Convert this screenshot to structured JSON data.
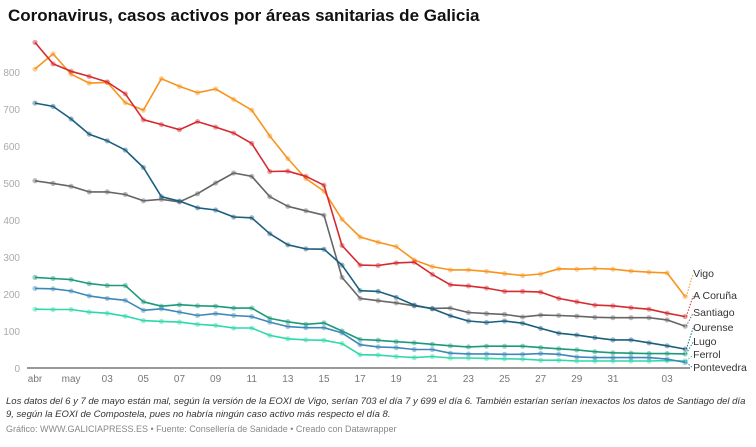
{
  "title": "Coronavirus, casos activos por áreas sanitarias de Galicia",
  "note": "Los datos del 6 y 7 de mayo están mal, según la versión de la EOXI de Vigo, serían 703 el día 7 y 699 el día 6. También estarían serían inexactos los datos de Santiago del día 9, según la EOXI de Compostela, pues no habría ningún caso activo más respecto el día 8.",
  "credit": "Gráfico: WWW.GALICIAPRESS.ES • Fuente: Consellería de Sanidade • Creado con Datawrapper",
  "chart_data": {
    "type": "line",
    "title": "Coronavirus, casos activos por áreas sanitarias de Galicia",
    "x": [
      "04-29",
      "04-30",
      "05-01",
      "05-02",
      "05-03",
      "05-04",
      "05-05",
      "05-06",
      "05-07",
      "05-08",
      "05-09",
      "05-10",
      "05-11",
      "05-12",
      "05-13",
      "05-14",
      "05-15",
      "05-16",
      "05-17",
      "05-18",
      "05-19",
      "05-20",
      "05-21",
      "05-22",
      "05-23",
      "05-24",
      "05-25",
      "05-26",
      "05-27",
      "05-28",
      "05-29",
      "05-30",
      "05-31",
      "06-01",
      "06-02",
      "06-03",
      "06-04"
    ],
    "x_ticks": [
      {
        "i": 0,
        "label": "abr"
      },
      {
        "i": 2,
        "label": "may"
      },
      {
        "i": 4,
        "label": "03"
      },
      {
        "i": 6,
        "label": "05"
      },
      {
        "i": 8,
        "label": "07"
      },
      {
        "i": 10,
        "label": "09"
      },
      {
        "i": 12,
        "label": "11"
      },
      {
        "i": 14,
        "label": "13"
      },
      {
        "i": 16,
        "label": "15"
      },
      {
        "i": 18,
        "label": "17"
      },
      {
        "i": 20,
        "label": "19"
      },
      {
        "i": 22,
        "label": "21"
      },
      {
        "i": 24,
        "label": "23"
      },
      {
        "i": 26,
        "label": "25"
      },
      {
        "i": 28,
        "label": "27"
      },
      {
        "i": 30,
        "label": "29"
      },
      {
        "i": 32,
        "label": "31"
      },
      {
        "i": 35,
        "label": "03"
      }
    ],
    "y_ticks": [
      0,
      100,
      200,
      300,
      400,
      500,
      600,
      700,
      800
    ],
    "ylim": [
      0,
      900
    ],
    "grid": false,
    "legend": "direct labels at line ends (right)",
    "series": [
      {
        "name": "Vigo",
        "color": "#f7941d",
        "values": [
          808,
          849,
          794,
          770,
          772,
          717,
          697,
          782,
          761,
          744,
          754,
          726,
          697,
          627,
          566,
          512,
          478,
          402,
          354,
          340,
          328,
          292,
          274,
          265,
          265,
          261,
          255,
          250,
          254,
          268,
          267,
          269,
          267,
          262,
          259,
          257,
          193
        ]
      },
      {
        "name": "A Coruña",
        "color": "#d42b30",
        "values": [
          880,
          822,
          802,
          788,
          773,
          741,
          671,
          658,
          644,
          666,
          651,
          635,
          607,
          531,
          532,
          518,
          494,
          331,
          278,
          277,
          284,
          286,
          253,
          225,
          222,
          216,
          207,
          207,
          205,
          188,
          179,
          170,
          168,
          163,
          159,
          148,
          139
        ]
      },
      {
        "name": "Santiago",
        "color": "#666666",
        "values": [
          506,
          499,
          491,
          476,
          476,
          469,
          452,
          456,
          449,
          471,
          500,
          527,
          518,
          463,
          437,
          425,
          413,
          245,
          188,
          182,
          176,
          168,
          161,
          162,
          150,
          147,
          145,
          138,
          143,
          142,
          140,
          137,
          136,
          136,
          136,
          130,
          113
        ]
      },
      {
        "name": "Ourense",
        "color": "#1b5e7e",
        "values": [
          716,
          707,
          673,
          632,
          614,
          589,
          542,
          463,
          451,
          433,
          427,
          408,
          406,
          363,
          333,
          322,
          321,
          278,
          209,
          207,
          191,
          170,
          160,
          141,
          127,
          123,
          127,
          121,
          107,
          94,
          89,
          82,
          76,
          76,
          68,
          60,
          51
        ]
      },
      {
        "name": "Lugo",
        "color": "#1a9a7a",
        "values": [
          245,
          242,
          239,
          228,
          223,
          223,
          179,
          167,
          171,
          168,
          167,
          162,
          162,
          134,
          125,
          118,
          122,
          100,
          77,
          75,
          71,
          68,
          64,
          60,
          57,
          59,
          59,
          59,
          55,
          52,
          49,
          44,
          41,
          40,
          39,
          39,
          38
        ]
      },
      {
        "name": "Ferrol",
        "color": "#2ed9a8",
        "values": [
          159,
          158,
          158,
          151,
          148,
          140,
          128,
          126,
          124,
          118,
          115,
          108,
          108,
          88,
          79,
          76,
          75,
          66,
          36,
          35,
          31,
          28,
          31,
          27,
          27,
          26,
          25,
          24,
          21,
          21,
          19,
          19,
          19,
          19,
          19,
          20,
          19
        ]
      },
      {
        "name": "Pontevedra",
        "color": "#3d88b8",
        "values": [
          215,
          214,
          208,
          195,
          188,
          183,
          156,
          160,
          151,
          142,
          147,
          142,
          139,
          124,
          112,
          109,
          109,
          95,
          63,
          57,
          55,
          50,
          50,
          40,
          38,
          38,
          37,
          37,
          39,
          37,
          30,
          28,
          28,
          28,
          28,
          24,
          15
        ]
      }
    ]
  }
}
